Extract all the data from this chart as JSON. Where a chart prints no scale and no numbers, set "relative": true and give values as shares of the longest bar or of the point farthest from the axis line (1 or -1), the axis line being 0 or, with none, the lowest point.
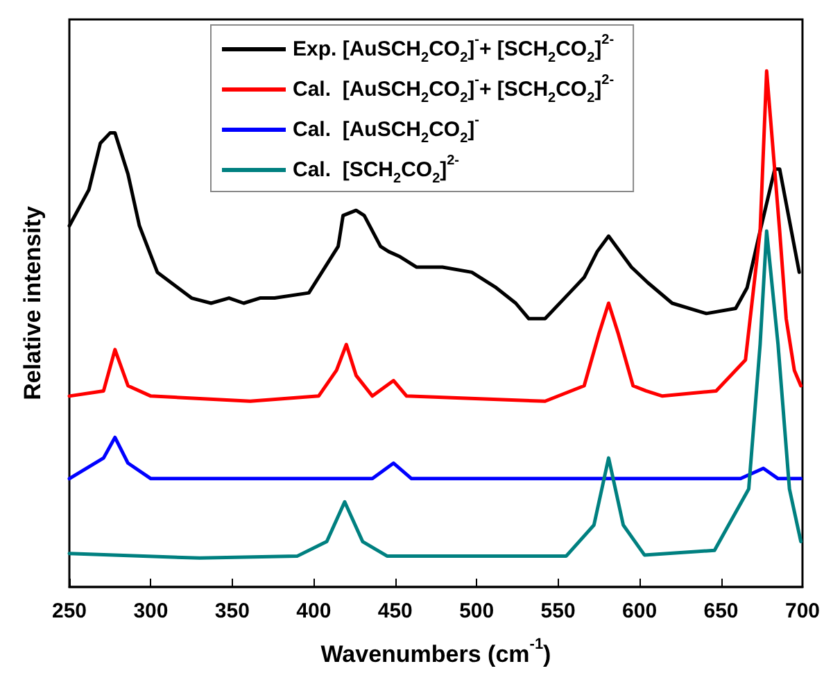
{
  "chart_data": {
    "type": "line",
    "relative": true,
    "xlabel": "Wavenumbers (cm$^{-1}$)",
    "ylabel": "Relative intensity",
    "xlim": [
      250,
      700
    ],
    "xticks": [
      250,
      300,
      350,
      400,
      450,
      500,
      550,
      600,
      650,
      700
    ],
    "legend": "top",
    "grid": false,
    "marker": "none",
    "line_style": "solid",
    "series": [
      {
        "name": "Exp. [AuSCH$_{2}$CO$_{2}$]$^{-}$+ [SCH$_{2}$CO$_{2}$]$^{2-}$",
        "color": "#000000",
        "x": [
          250,
          262,
          269,
          275,
          278,
          286,
          293,
          304,
          325,
          337,
          348,
          357,
          367,
          376,
          397,
          415,
          418,
          426,
          431,
          441,
          446,
          453,
          463,
          479,
          497,
          512,
          524,
          532,
          542,
          557,
          566,
          574,
          581,
          595,
          605,
          620,
          641,
          659,
          666,
          674,
          683,
          686,
          692,
          698
        ],
        "values": [
          0.7,
          0.77,
          0.86,
          0.88,
          0.88,
          0.8,
          0.7,
          0.61,
          0.56,
          0.55,
          0.56,
          0.55,
          0.56,
          0.56,
          0.57,
          0.66,
          0.72,
          0.73,
          0.72,
          0.66,
          0.65,
          0.64,
          0.62,
          0.62,
          0.61,
          0.58,
          0.55,
          0.52,
          0.52,
          0.57,
          0.6,
          0.65,
          0.68,
          0.62,
          0.59,
          0.55,
          0.53,
          0.54,
          0.58,
          0.69,
          0.81,
          0.81,
          0.71,
          0.61
        ]
      },
      {
        "name": "Cal.  [AuSCH$_{2}$CO$_{2}$]$^{-}$+ [SCH$_{2}$CO$_{2}$]$^{2-}$",
        "color": "#ff0000",
        "x": [
          250,
          271,
          278,
          286,
          300,
          361,
          403,
          414,
          420,
          426,
          436,
          449,
          457,
          542,
          566,
          575,
          581,
          587,
          596,
          604,
          614,
          647,
          665,
          674,
          678,
          686,
          690,
          695,
          699
        ],
        "values": [
          0.37,
          0.38,
          0.46,
          0.39,
          0.37,
          0.36,
          0.37,
          0.42,
          0.47,
          0.41,
          0.37,
          0.4,
          0.37,
          0.36,
          0.39,
          0.49,
          0.55,
          0.49,
          0.39,
          0.38,
          0.37,
          0.38,
          0.44,
          0.69,
          1.0,
          0.69,
          0.52,
          0.42,
          0.39
        ]
      },
      {
        "name": "Cal.  [AuSCH$_{2}$CO$_{2}$]$^{-}$",
        "color": "#0000ff",
        "x": [
          250,
          271,
          278,
          286,
          300,
          361,
          436,
          449,
          460,
          542,
          596,
          603,
          614,
          662,
          676,
          685,
          699
        ],
        "values": [
          0.21,
          0.25,
          0.29,
          0.24,
          0.21,
          0.21,
          0.21,
          0.24,
          0.21,
          0.21,
          0.21,
          0.21,
          0.21,
          0.21,
          0.23,
          0.21,
          0.21
        ]
      },
      {
        "name": "Cal.  [SCH$_{2}$CO$_{2}$]$^{2-}$",
        "color": "#008080",
        "x": [
          250,
          330,
          390,
          408,
          419,
          430,
          445,
          555,
          572,
          581,
          590,
          603,
          646,
          667,
          674,
          678,
          685,
          692,
          699
        ],
        "values": [
          0.065,
          0.056,
          0.06,
          0.088,
          0.165,
          0.088,
          0.06,
          0.06,
          0.12,
          0.25,
          0.12,
          0.062,
          0.071,
          0.19,
          0.47,
          0.69,
          0.47,
          0.19,
          0.088
        ]
      }
    ]
  }
}
